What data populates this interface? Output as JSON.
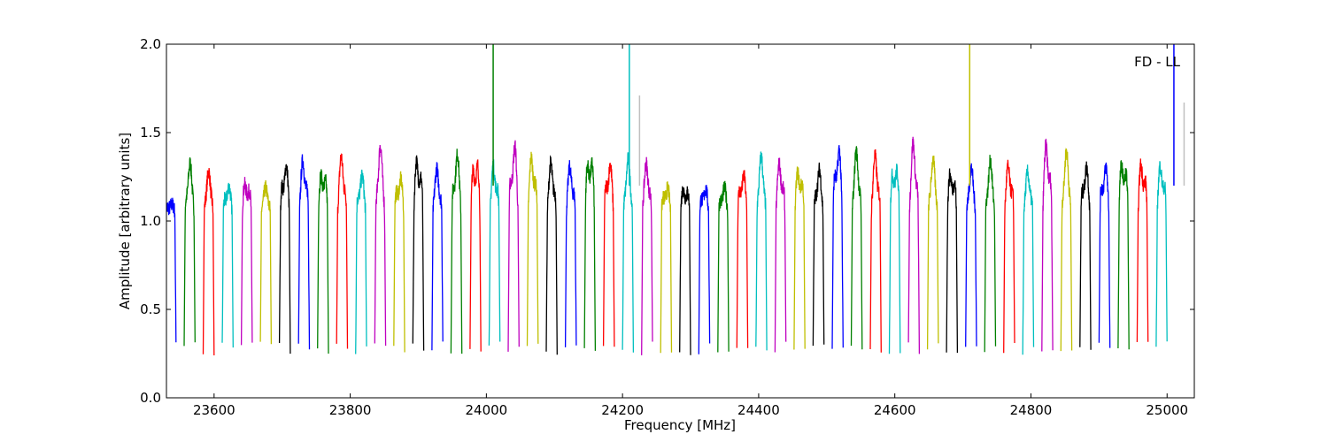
{
  "chart_data": {
    "type": "line",
    "title": "",
    "xlabel": "Frequency [MHz]",
    "ylabel": "Amplitude [arbitrary units]",
    "annotation": "FD - LL",
    "xlim": [
      23530,
      25040
    ],
    "ylim": [
      0.0,
      2.0
    ],
    "xticks": [
      23600,
      23800,
      24000,
      24200,
      24400,
      24600,
      24800,
      25000
    ],
    "yticks": [
      0.0,
      0.5,
      1.0,
      1.5,
      2.0
    ],
    "yticklabels": [
      "0.0",
      "0.5",
      "1.0",
      "1.5",
      "2.0"
    ],
    "grid": false,
    "legend": "none",
    "channel_width_mhz": 16,
    "color_cycle": [
      "#0000ff",
      "#008000",
      "#ff0000",
      "#00bfbf",
      "#bf00bf",
      "#bfbf00",
      "#000000"
    ],
    "band_peaks": [
      1.1,
      1.33,
      1.28,
      1.21,
      1.25,
      1.19,
      1.35,
      1.37,
      1.33,
      1.38,
      1.27,
      1.43,
      1.27,
      1.4,
      1.3,
      1.4,
      1.41,
      1.34,
      1.46,
      1.4,
      1.34,
      1.32,
      1.44,
      1.36,
      1.35,
      1.34,
      1.21,
      1.22,
      1.2,
      1.2,
      1.29,
      1.37,
      1.35,
      1.33,
      1.3,
      1.46,
      1.4,
      1.38,
      1.37,
      1.46,
      1.35,
      1.32,
      1.3,
      1.34,
      1.33,
      1.28,
      1.47,
      1.4,
      1.33,
      1.34,
      1.4,
      1.37,
      1.35
    ],
    "spikes": [
      {
        "x": 24010,
        "y": 2.0,
        "color": "#008000"
      },
      {
        "x": 24210,
        "y": 2.0,
        "color": "#00bfbf"
      },
      {
        "x": 24225,
        "y": 1.71,
        "color": "#c0c0c0"
      },
      {
        "x": 24710,
        "y": 2.0,
        "color": "#bfbf00"
      },
      {
        "x": 25010,
        "y": 2.0,
        "color": "#0000ff"
      },
      {
        "x": 25025,
        "y": 1.67,
        "color": "#c0c0c0"
      }
    ]
  }
}
